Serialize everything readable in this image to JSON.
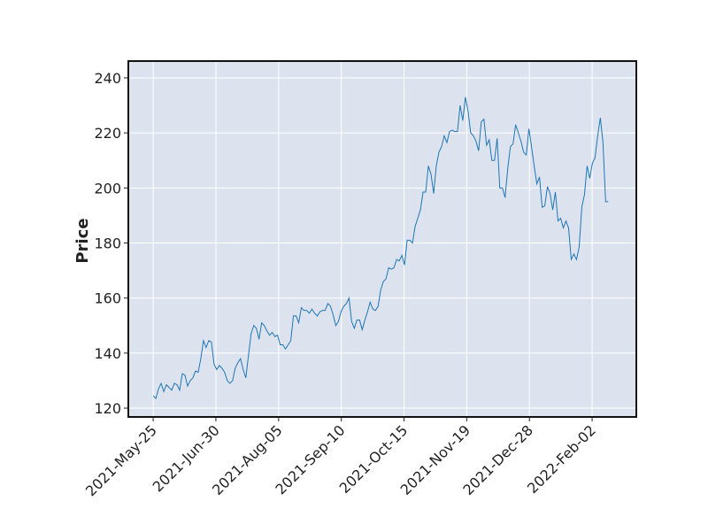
{
  "chart_data": {
    "type": "line",
    "y_label": "Price",
    "color": "#1f77b4",
    "grid": true,
    "values": [
      124.5,
      123.5,
      127,
      129,
      126,
      128.5,
      127.5,
      126.5,
      129,
      128.5,
      126.5,
      132.5,
      132,
      128,
      130,
      131,
      133.5,
      133,
      138,
      144.5,
      142,
      144.5,
      144,
      136,
      134,
      135.5,
      134.5,
      133,
      130,
      129,
      130,
      134.5,
      136.5,
      138,
      134,
      131,
      139,
      147,
      150,
      149,
      145,
      151,
      150,
      148,
      146.5,
      147.5,
      146,
      146.5,
      143,
      143,
      141.5,
      143,
      144.5,
      153.5,
      153.5,
      151,
      156.5,
      155.5,
      155.5,
      154.5,
      156,
      154.5,
      153.5,
      155,
      155.5,
      155.5,
      158,
      157,
      154,
      150,
      151.5,
      155,
      157,
      158,
      160,
      151.5,
      149,
      152,
      152,
      148.5,
      152,
      155,
      158.5,
      156,
      155.5,
      157,
      163,
      166,
      167,
      171,
      170.5,
      171,
      174,
      173.5,
      175.5,
      172,
      181,
      181,
      180,
      186,
      189,
      192,
      198.5,
      198.5,
      208,
      205,
      198,
      208,
      213,
      215,
      219,
      216.5,
      220.5,
      221,
      220.5,
      220.5,
      230,
      224.5,
      233,
      228,
      220,
      219,
      217,
      213.5,
      224,
      225,
      215.5,
      217.5,
      210,
      210,
      218,
      200,
      200,
      196.5,
      207,
      215,
      216,
      223,
      220,
      217,
      213,
      212,
      221.5,
      215,
      208,
      201.5,
      204,
      193,
      193.5,
      200.5,
      198,
      192,
      198.5,
      188,
      189,
      185.5,
      188,
      185.5,
      174,
      176,
      174,
      178.5,
      193,
      197.5,
      208,
      203.5,
      209,
      211,
      219,
      225.5,
      216.5,
      195,
      195
    ],
    "xlim": [
      -9.4,
      182.6
    ],
    "xticks": [
      {
        "value": 0,
        "label": "2021-May-25"
      },
      {
        "value": 23.7,
        "label": "2021-Jun-30"
      },
      {
        "value": 47.4,
        "label": "2021-Aug-05"
      },
      {
        "value": 71.1,
        "label": "2021-Sep-10"
      },
      {
        "value": 94.8,
        "label": "2021-Oct-15"
      },
      {
        "value": 118.5,
        "label": "2021-Nov-19"
      },
      {
        "value": 142.2,
        "label": "2021-Dec-28"
      },
      {
        "value": 165.9,
        "label": "2022-Feb-02"
      }
    ],
    "ylim": [
      116.8,
      246.1
    ],
    "yticks": [
      120,
      140,
      160,
      180,
      200,
      220,
      240
    ]
  }
}
